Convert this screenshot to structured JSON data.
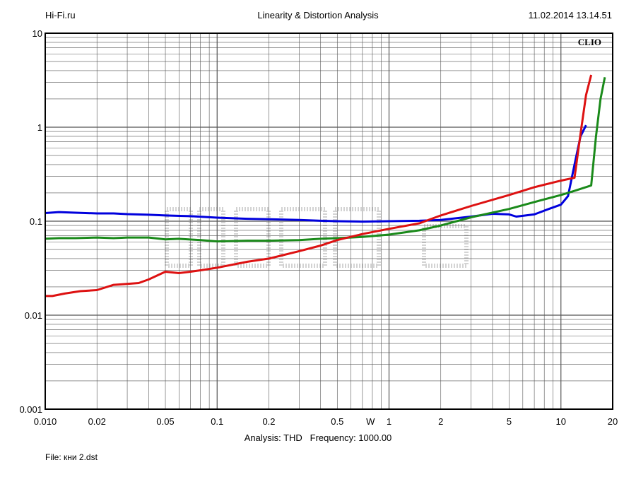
{
  "header": {
    "left": "Hi-Fi.ru",
    "center": "Linearity & Distortion Analysis",
    "right": "11.02.2014 13.14.51"
  },
  "footer": {
    "analysis_label": "Analysis: THD",
    "frequency_label": "Frequency: 1000.00",
    "file_label": "File: кни 2.dst"
  },
  "chart_data": {
    "type": "line",
    "brand": "CLIO",
    "x_scale": "log",
    "y_scale": "log",
    "xlim": [
      0.01,
      20
    ],
    "ylim": [
      0.001,
      10
    ],
    "grid": true,
    "x_ticks": [
      {
        "value": 0.01,
        "label": "0.010"
      },
      {
        "value": 0.02,
        "label": "0.02"
      },
      {
        "value": 0.05,
        "label": "0.05"
      },
      {
        "value": 0.1,
        "label": "0.1"
      },
      {
        "value": 0.2,
        "label": "0.2"
      },
      {
        "value": 0.5,
        "label": "0.5"
      },
      {
        "value": 0.78,
        "label": "W"
      },
      {
        "value": 1,
        "label": "1"
      },
      {
        "value": 2,
        "label": "2"
      },
      {
        "value": 5,
        "label": "5"
      },
      {
        "value": 10,
        "label": "10"
      },
      {
        "value": 20,
        "label": "20"
      }
    ],
    "y_ticks": [
      {
        "value": 10,
        "label": "10"
      },
      {
        "value": 1,
        "label": "1"
      },
      {
        "value": 0.1,
        "label": "0.1"
      },
      {
        "value": 0.01,
        "label": "0.01"
      },
      {
        "value": 0.001,
        "label": "0.001"
      }
    ],
    "series": [
      {
        "color": "#0000dd",
        "x": [
          0.01,
          0.012,
          0.015,
          0.02,
          0.025,
          0.03,
          0.04,
          0.05,
          0.07,
          0.1,
          0.15,
          0.2,
          0.3,
          0.4,
          0.5,
          0.7,
          1,
          1.5,
          2,
          3,
          4,
          5,
          5.5,
          7,
          8.5,
          10,
          11,
          12,
          13,
          14
        ],
        "y": [
          0.122,
          0.125,
          0.123,
          0.121,
          0.121,
          0.119,
          0.117,
          0.115,
          0.113,
          0.109,
          0.106,
          0.105,
          0.103,
          0.101,
          0.1,
          0.099,
          0.1,
          0.101,
          0.103,
          0.112,
          0.12,
          0.118,
          0.112,
          0.118,
          0.135,
          0.15,
          0.185,
          0.4,
          0.8,
          1.05
        ]
      },
      {
        "color": "#1a8a1a",
        "x": [
          0.01,
          0.012,
          0.015,
          0.02,
          0.025,
          0.03,
          0.04,
          0.05,
          0.06,
          0.08,
          0.1,
          0.15,
          0.2,
          0.3,
          0.4,
          0.5,
          0.7,
          1,
          1.5,
          2,
          3,
          5,
          7,
          10,
          12,
          15,
          16,
          17,
          18
        ],
        "y": [
          0.065,
          0.066,
          0.066,
          0.067,
          0.066,
          0.067,
          0.067,
          0.064,
          0.065,
          0.063,
          0.061,
          0.062,
          0.062,
          0.063,
          0.065,
          0.066,
          0.068,
          0.072,
          0.08,
          0.09,
          0.11,
          0.135,
          0.16,
          0.19,
          0.21,
          0.24,
          0.8,
          2.0,
          3.4
        ]
      },
      {
        "color": "#dd1111",
        "x": [
          0.01,
          0.011,
          0.013,
          0.016,
          0.02,
          0.025,
          0.03,
          0.035,
          0.04,
          0.05,
          0.06,
          0.07,
          0.08,
          0.1,
          0.15,
          0.2,
          0.3,
          0.4,
          0.5,
          0.7,
          1,
          1.5,
          2,
          3,
          5,
          7,
          10,
          12,
          13,
          14,
          15
        ],
        "y": [
          0.016,
          0.016,
          0.017,
          0.018,
          0.0185,
          0.021,
          0.0215,
          0.022,
          0.024,
          0.029,
          0.028,
          0.029,
          0.03,
          0.032,
          0.037,
          0.04,
          0.048,
          0.055,
          0.063,
          0.073,
          0.083,
          0.095,
          0.115,
          0.145,
          0.19,
          0.23,
          0.27,
          0.29,
          0.85,
          2.2,
          3.6
        ]
      }
    ]
  }
}
